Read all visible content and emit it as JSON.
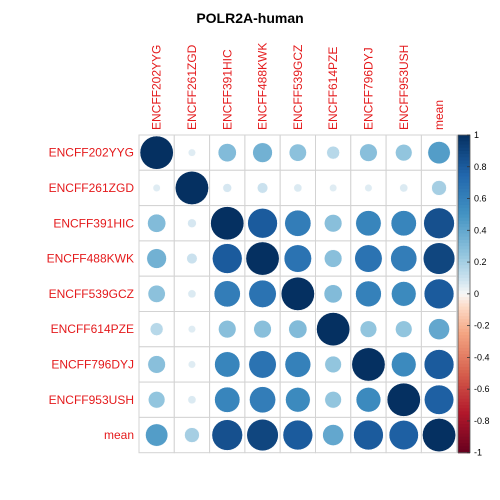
{
  "chart_data": {
    "type": "heatmap",
    "title": "POLR2A-human",
    "rows": [
      "ENCFF202YYG",
      "ENCFF261ZGD",
      "ENCFF391HIC",
      "ENCFF488KWK",
      "ENCFF539GCZ",
      "ENCFF614PZE",
      "ENCFF796DYJ",
      "ENCFF953USH",
      "mean"
    ],
    "columns": [
      "ENCFF202YYG",
      "ENCFF261ZGD",
      "ENCFF391HIC",
      "ENCFF488KWK",
      "ENCFF539GCZ",
      "ENCFF614PZE",
      "ENCFF796DYJ",
      "ENCFF953USH",
      "mean"
    ],
    "values": [
      [
        1.0,
        0.05,
        0.3,
        0.35,
        0.27,
        0.15,
        0.28,
        0.25,
        0.45
      ],
      [
        0.05,
        1.0,
        0.07,
        0.1,
        0.06,
        0.05,
        0.05,
        0.06,
        0.2
      ],
      [
        0.3,
        0.07,
        1.0,
        0.8,
        0.62,
        0.28,
        0.58,
        0.58,
        0.85
      ],
      [
        0.35,
        0.1,
        0.8,
        1.0,
        0.68,
        0.28,
        0.68,
        0.62,
        0.9
      ],
      [
        0.27,
        0.06,
        0.62,
        0.68,
        1.0,
        0.3,
        0.6,
        0.55,
        0.8
      ],
      [
        0.15,
        0.05,
        0.28,
        0.28,
        0.3,
        1.0,
        0.25,
        0.25,
        0.4
      ],
      [
        0.28,
        0.05,
        0.58,
        0.68,
        0.6,
        0.25,
        1.0,
        0.55,
        0.8
      ],
      [
        0.25,
        0.06,
        0.58,
        0.62,
        0.55,
        0.25,
        0.55,
        1.0,
        0.78
      ],
      [
        0.45,
        0.2,
        0.85,
        0.9,
        0.8,
        0.4,
        0.8,
        0.78,
        1.0
      ]
    ],
    "colorbar": {
      "ticks": [
        "-1",
        "-0.8",
        "-0.6",
        "-0.4",
        "-0.2",
        "0",
        "0.2",
        "0.4",
        "0.6",
        "0.8",
        "1"
      ],
      "range": [
        -1,
        1
      ]
    },
    "label_color": "#e41a1c"
  }
}
